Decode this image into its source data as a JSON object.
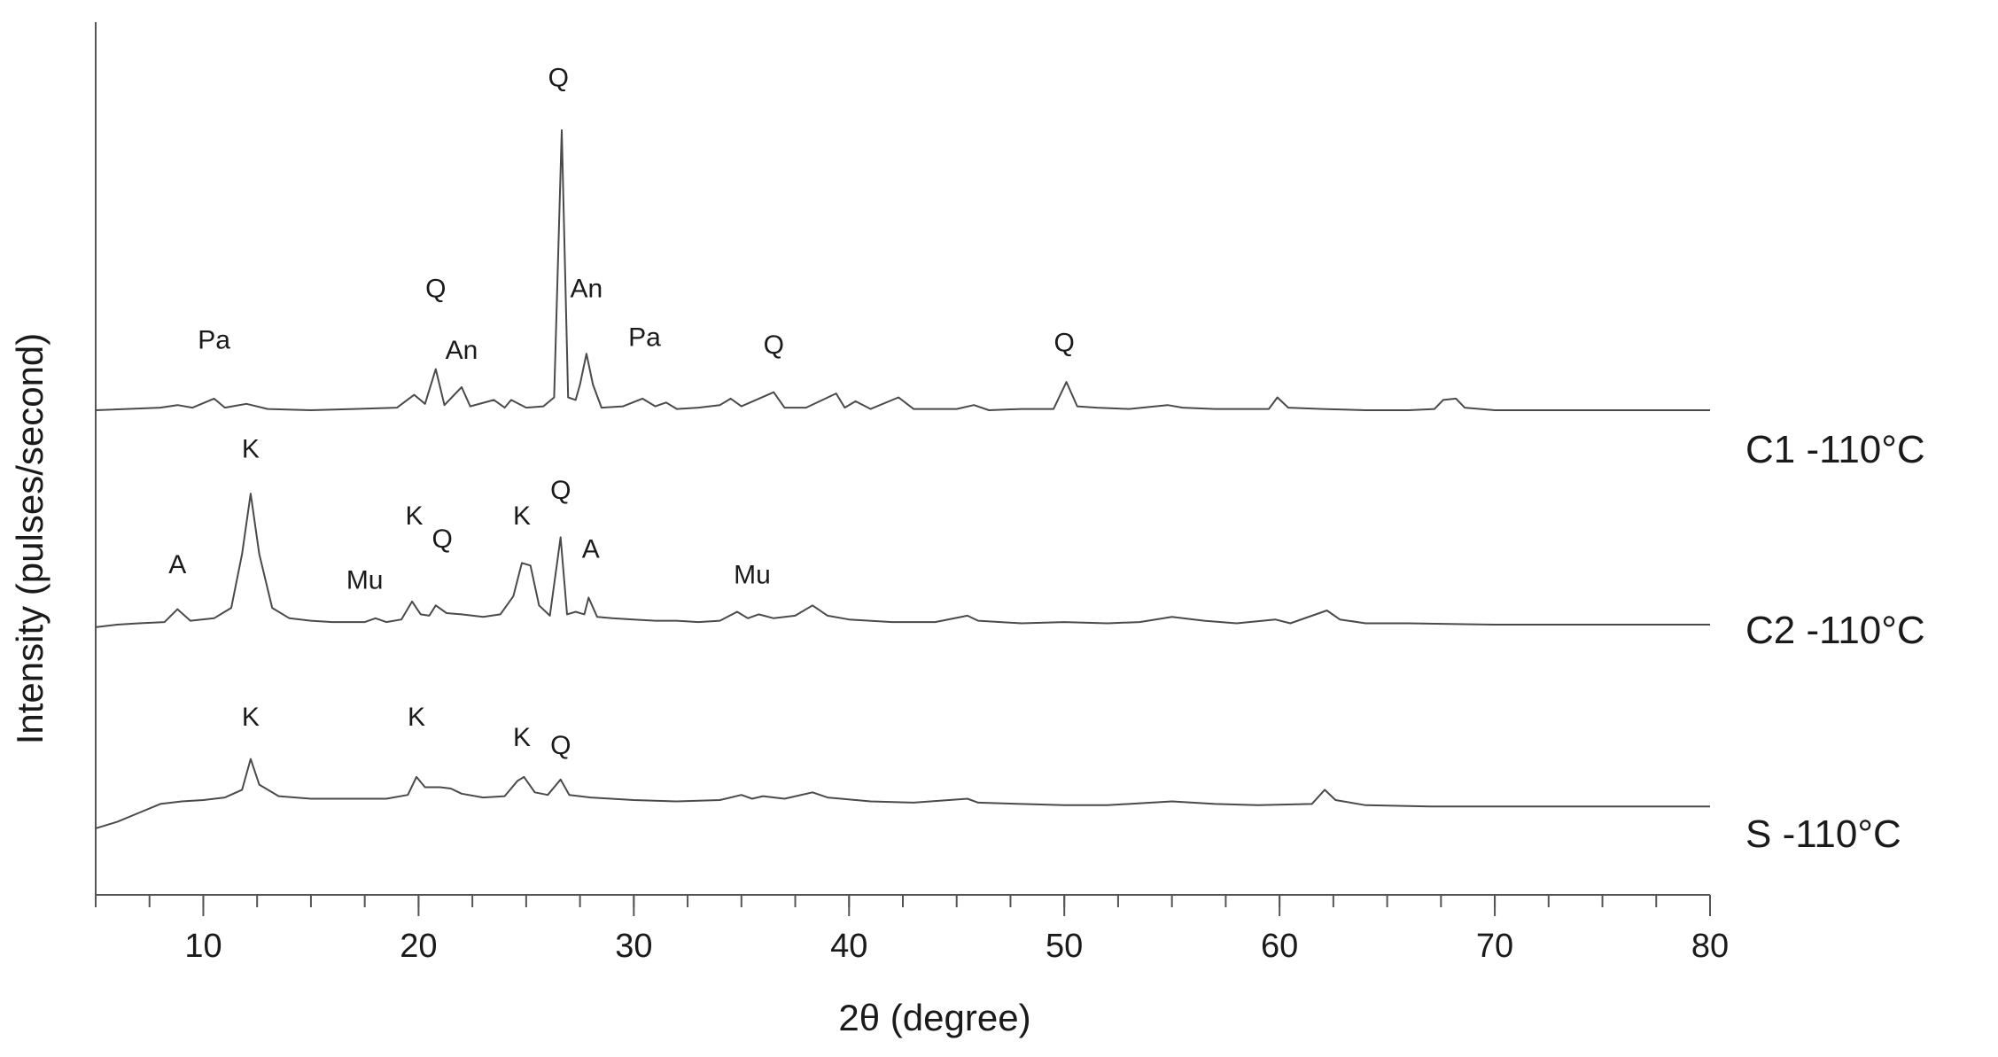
{
  "chart_data": {
    "type": "line",
    "xlabel": "2θ (degree)",
    "ylabel": "Intensity (pulses/second)",
    "xlim": [
      5,
      80
    ],
    "x_ticks": [
      10,
      20,
      30,
      40,
      50,
      60,
      70,
      80
    ],
    "x_minor_step": 2.5,
    "y_ticks_shown": false,
    "grid": false,
    "legend": "none",
    "series": [
      {
        "name": "C1 -110°C",
        "color": "#4a4a4a",
        "baseline_y": 40,
        "points": [
          [
            5,
            40
          ],
          [
            8,
            42
          ],
          [
            8.8,
            44
          ],
          [
            9.5,
            42
          ],
          [
            10.5,
            49
          ],
          [
            11,
            42
          ],
          [
            12,
            45
          ],
          [
            13,
            41
          ],
          [
            15,
            40
          ],
          [
            17,
            41
          ],
          [
            19,
            42
          ],
          [
            19.8,
            52
          ],
          [
            20.3,
            45
          ],
          [
            20.8,
            72
          ],
          [
            21.2,
            44
          ],
          [
            22,
            58
          ],
          [
            22.4,
            43
          ],
          [
            23.5,
            48
          ],
          [
            24,
            42
          ],
          [
            24.3,
            48
          ],
          [
            25,
            42
          ],
          [
            25.8,
            43
          ],
          [
            26.3,
            50
          ],
          [
            26.65,
            258
          ],
          [
            26.95,
            50
          ],
          [
            27.3,
            48
          ],
          [
            27.5,
            60
          ],
          [
            27.8,
            84
          ],
          [
            28.1,
            60
          ],
          [
            28.5,
            42
          ],
          [
            29.5,
            43
          ],
          [
            30.4,
            49
          ],
          [
            31,
            43
          ],
          [
            31.5,
            46
          ],
          [
            32,
            41
          ],
          [
            33,
            42
          ],
          [
            34,
            44
          ],
          [
            34.5,
            49
          ],
          [
            35,
            43
          ],
          [
            36.5,
            54
          ],
          [
            37,
            42
          ],
          [
            38,
            42
          ],
          [
            39.4,
            53
          ],
          [
            39.8,
            42
          ],
          [
            40.3,
            47
          ],
          [
            41,
            41
          ],
          [
            42.3,
            50
          ],
          [
            43,
            41
          ],
          [
            45,
            41
          ],
          [
            45.8,
            44
          ],
          [
            46.5,
            40
          ],
          [
            48,
            41
          ],
          [
            49.5,
            41
          ],
          [
            50.1,
            62
          ],
          [
            50.6,
            43
          ],
          [
            51.5,
            42
          ],
          [
            53,
            41
          ],
          [
            54.8,
            44
          ],
          [
            55.5,
            42
          ],
          [
            57,
            41
          ],
          [
            59.5,
            41
          ],
          [
            59.9,
            50
          ],
          [
            60.4,
            42
          ],
          [
            62,
            41
          ],
          [
            64,
            40
          ],
          [
            66,
            40
          ],
          [
            67.2,
            41
          ],
          [
            67.6,
            48
          ],
          [
            68.2,
            49
          ],
          [
            68.6,
            42
          ],
          [
            70,
            40
          ],
          [
            72,
            40
          ],
          [
            75,
            40
          ],
          [
            80,
            40
          ]
        ],
        "peak_labels": [
          {
            "label": "Pa",
            "x": 10.5,
            "y": 88
          },
          {
            "label": "Q",
            "x": 20.8,
            "y": 128
          },
          {
            "label": "An",
            "x": 22,
            "y": 80
          },
          {
            "label": "Q",
            "x": 26.5,
            "y": 292
          },
          {
            "label": "An",
            "x": 27.8,
            "y": 128
          },
          {
            "label": "Pa",
            "x": 30.5,
            "y": 90
          },
          {
            "label": "Q",
            "x": 36.5,
            "y": 84
          },
          {
            "label": "Q",
            "x": 50,
            "y": 86
          }
        ]
      },
      {
        "name": "C2 -110°C",
        "color": "#4a4a4a",
        "baseline_y": 20,
        "points": [
          [
            5,
            18
          ],
          [
            6,
            20
          ],
          [
            7,
            21
          ],
          [
            8.2,
            22
          ],
          [
            8.8,
            32
          ],
          [
            9.4,
            23
          ],
          [
            10.5,
            25
          ],
          [
            11.3,
            33
          ],
          [
            11.8,
            75
          ],
          [
            12.2,
            122
          ],
          [
            12.6,
            75
          ],
          [
            13.2,
            33
          ],
          [
            14,
            25
          ],
          [
            15,
            23
          ],
          [
            16,
            22
          ],
          [
            17.5,
            22
          ],
          [
            18,
            25
          ],
          [
            18.5,
            22
          ],
          [
            19.2,
            24
          ],
          [
            19.7,
            38
          ],
          [
            20.1,
            28
          ],
          [
            20.5,
            27
          ],
          [
            20.8,
            35
          ],
          [
            21.3,
            29
          ],
          [
            22,
            28
          ],
          [
            23,
            26
          ],
          [
            23.8,
            28
          ],
          [
            24.4,
            42
          ],
          [
            24.8,
            68
          ],
          [
            25.2,
            66
          ],
          [
            25.6,
            35
          ],
          [
            26.1,
            27
          ],
          [
            26.6,
            88
          ],
          [
            26.9,
            28
          ],
          [
            27.3,
            30
          ],
          [
            27.7,
            28
          ],
          [
            27.9,
            41
          ],
          [
            28.3,
            26
          ],
          [
            29,
            25
          ],
          [
            30,
            24
          ],
          [
            31,
            23
          ],
          [
            32,
            23
          ],
          [
            33,
            22
          ],
          [
            34,
            23
          ],
          [
            34.8,
            30
          ],
          [
            35.3,
            25
          ],
          [
            35.8,
            28
          ],
          [
            36.5,
            25
          ],
          [
            37.5,
            27
          ],
          [
            38.3,
            35
          ],
          [
            39,
            27
          ],
          [
            40,
            24
          ],
          [
            42,
            22
          ],
          [
            44,
            22
          ],
          [
            45.5,
            27
          ],
          [
            46,
            23
          ],
          [
            48,
            21
          ],
          [
            50,
            22
          ],
          [
            52,
            21
          ],
          [
            53.5,
            22
          ],
          [
            55,
            26
          ],
          [
            56.5,
            23
          ],
          [
            58,
            21
          ],
          [
            59.8,
            24
          ],
          [
            60.5,
            21
          ],
          [
            62.2,
            31
          ],
          [
            62.8,
            24
          ],
          [
            64,
            21
          ],
          [
            66,
            21
          ],
          [
            70,
            20
          ],
          [
            75,
            20
          ],
          [
            80,
            20
          ]
        ],
        "peak_labels": [
          {
            "label": "A",
            "x": 8.8,
            "y": 60
          },
          {
            "label": "K",
            "x": 12.2,
            "y": 150
          },
          {
            "label": "Mu",
            "x": 17.5,
            "y": 48
          },
          {
            "label": "K",
            "x": 19.8,
            "y": 98
          },
          {
            "label": "Q",
            "x": 21.1,
            "y": 80
          },
          {
            "label": "K",
            "x": 24.8,
            "y": 98
          },
          {
            "label": "Q",
            "x": 26.6,
            "y": 118
          },
          {
            "label": "A",
            "x": 28,
            "y": 72
          },
          {
            "label": "Mu",
            "x": 35.5,
            "y": 52
          }
        ]
      },
      {
        "name": "S -110°C",
        "color": "#4a4a4a",
        "baseline_y": 0,
        "points": [
          [
            5,
            -2
          ],
          [
            6,
            3
          ],
          [
            7,
            10
          ],
          [
            8,
            17
          ],
          [
            9,
            19
          ],
          [
            10,
            20
          ],
          [
            11,
            22
          ],
          [
            11.8,
            28
          ],
          [
            12.2,
            52
          ],
          [
            12.6,
            32
          ],
          [
            13.5,
            23
          ],
          [
            15,
            21
          ],
          [
            16,
            21
          ],
          [
            17.5,
            21
          ],
          [
            18.5,
            21
          ],
          [
            19.5,
            24
          ],
          [
            19.9,
            38
          ],
          [
            20.3,
            30
          ],
          [
            21,
            30
          ],
          [
            21.5,
            29
          ],
          [
            22,
            25
          ],
          [
            23,
            22
          ],
          [
            24,
            23
          ],
          [
            24.6,
            35
          ],
          [
            24.9,
            38
          ],
          [
            25.4,
            26
          ],
          [
            26,
            24
          ],
          [
            26.6,
            36
          ],
          [
            27,
            24
          ],
          [
            28,
            22
          ],
          [
            30,
            20
          ],
          [
            32,
            19
          ],
          [
            34,
            20
          ],
          [
            35,
            24
          ],
          [
            35.5,
            21
          ],
          [
            36,
            23
          ],
          [
            37,
            21
          ],
          [
            38.3,
            26
          ],
          [
            39,
            22
          ],
          [
            41,
            19
          ],
          [
            43,
            18
          ],
          [
            45.5,
            21
          ],
          [
            46,
            18
          ],
          [
            48,
            17
          ],
          [
            50,
            16
          ],
          [
            52,
            16
          ],
          [
            55,
            19
          ],
          [
            57,
            17
          ],
          [
            59,
            16
          ],
          [
            61.5,
            17
          ],
          [
            62.1,
            28
          ],
          [
            62.6,
            20
          ],
          [
            64,
            16
          ],
          [
            67,
            15
          ],
          [
            70,
            15
          ],
          [
            75,
            15
          ],
          [
            80,
            15
          ]
        ],
        "peak_labels": [
          {
            "label": "K",
            "x": 12.2,
            "y": 78
          },
          {
            "label": "K",
            "x": 19.9,
            "y": 78
          },
          {
            "label": "K",
            "x": 24.8,
            "y": 62
          },
          {
            "label": "Q",
            "x": 26.6,
            "y": 56
          }
        ]
      }
    ]
  }
}
